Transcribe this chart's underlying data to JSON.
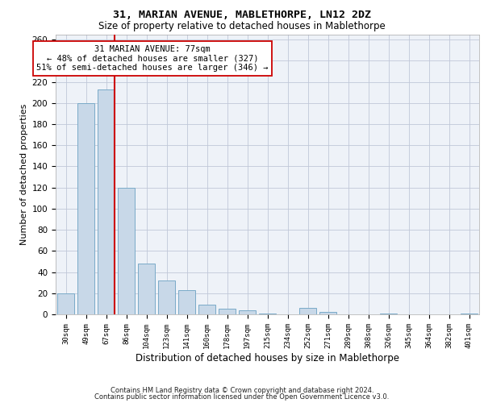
{
  "title1": "31, MARIAN AVENUE, MABLETHORPE, LN12 2DZ",
  "title2": "Size of property relative to detached houses in Mablethorpe",
  "xlabel": "Distribution of detached houses by size in Mablethorpe",
  "ylabel": "Number of detached properties",
  "categories": [
    "30sqm",
    "49sqm",
    "67sqm",
    "86sqm",
    "104sqm",
    "123sqm",
    "141sqm",
    "160sqm",
    "178sqm",
    "197sqm",
    "215sqm",
    "234sqm",
    "252sqm",
    "271sqm",
    "289sqm",
    "308sqm",
    "326sqm",
    "345sqm",
    "364sqm",
    "382sqm",
    "401sqm"
  ],
  "values": [
    20,
    200,
    213,
    120,
    48,
    32,
    23,
    9,
    5,
    4,
    1,
    0,
    6,
    2,
    0,
    0,
    1,
    0,
    0,
    0,
    1
  ],
  "bar_color": "#c8d8e8",
  "bar_edge_color": "#7aaac8",
  "grid_color": "#c0c8d8",
  "background_color": "#eef2f8",
  "vline_color": "#cc0000",
  "vline_x": 2.425,
  "annotation_text": "31 MARIAN AVENUE: 77sqm\n← 48% of detached houses are smaller (327)\n51% of semi-detached houses are larger (346) →",
  "annotation_box_edge": "#cc0000",
  "annotation_fontsize": 7.5,
  "ylim_max": 265,
  "yticks": [
    0,
    20,
    40,
    60,
    80,
    100,
    120,
    140,
    160,
    180,
    200,
    220,
    240,
    260
  ],
  "footer1": "Contains HM Land Registry data © Crown copyright and database right 2024.",
  "footer2": "Contains public sector information licensed under the Open Government Licence v3.0."
}
